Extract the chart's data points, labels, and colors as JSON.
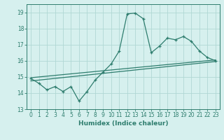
{
  "xlabel": "Humidex (Indice chaleur)",
  "x_values": [
    0,
    1,
    2,
    3,
    4,
    5,
    6,
    7,
    8,
    9,
    10,
    11,
    12,
    13,
    14,
    15,
    16,
    17,
    18,
    19,
    20,
    21,
    22,
    23
  ],
  "y_main": [
    14.9,
    14.6,
    14.2,
    14.4,
    14.1,
    14.4,
    13.5,
    14.1,
    14.8,
    15.3,
    15.8,
    16.6,
    18.9,
    18.95,
    18.6,
    16.5,
    16.9,
    17.4,
    17.3,
    17.5,
    17.2,
    16.6,
    16.2,
    16.0
  ],
  "line_color": "#2e7d6e",
  "bg_color": "#d6f0ee",
  "grid_color": "#b0d8d4",
  "ylim": [
    13,
    19.5
  ],
  "xlim": [
    -0.5,
    23.5
  ],
  "yticks": [
    13,
    14,
    15,
    16,
    17,
    18,
    19
  ],
  "xticks": [
    0,
    1,
    2,
    3,
    4,
    5,
    6,
    7,
    8,
    9,
    10,
    11,
    12,
    13,
    14,
    15,
    16,
    17,
    18,
    19,
    20,
    21,
    22,
    23
  ],
  "trend1_start": 14.95,
  "trend1_end": 16.05,
  "trend2_start": 14.75,
  "trend2_end": 15.95
}
